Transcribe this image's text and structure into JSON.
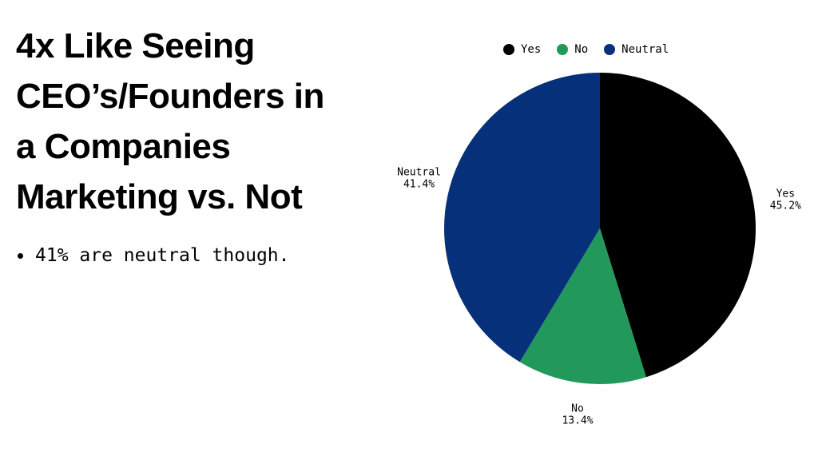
{
  "title_lines": [
    "4x Like Seeing",
    "CEO’s/Founders in",
    "a Companies",
    "Marketing vs. Not"
  ],
  "bullets": [
    "41% are neutral though."
  ],
  "chart_data": {
    "type": "pie",
    "categories": [
      "Yes",
      "No",
      "Neutral"
    ],
    "values": [
      45.2,
      13.4,
      41.4
    ],
    "value_labels": [
      "45.2%",
      "13.4%",
      "41.4%"
    ],
    "colors": [
      "#000000",
      "#22995a",
      "#07307a"
    ],
    "legend_position": "top",
    "start_angle_deg": 0,
    "direction": "clockwise"
  }
}
